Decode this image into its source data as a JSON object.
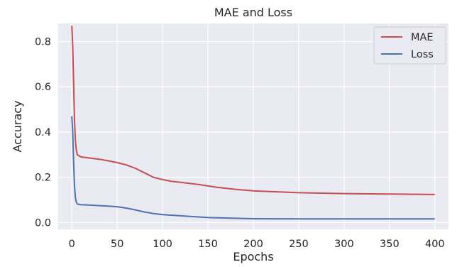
{
  "colors": {
    "plot_background": "#eaeaf2",
    "grid": "#ffffff",
    "mae": "#c44e52",
    "loss": "#4c72b0"
  },
  "chart_data": {
    "type": "line",
    "title": "MAE and Loss",
    "xlabel": "Epochs",
    "ylabel": "Accuracy",
    "xlim": [
      -15,
      415
    ],
    "ylim": [
      -0.03,
      0.88
    ],
    "x_ticks": [
      0,
      50,
      100,
      150,
      200,
      250,
      300,
      350,
      400
    ],
    "x_tick_labels": [
      "0",
      "50",
      "100",
      "150",
      "200",
      "250",
      "300",
      "350",
      "400"
    ],
    "y_ticks": [
      0.0,
      0.2,
      0.4,
      0.6,
      0.8
    ],
    "y_tick_labels": [
      "0.0",
      "0.2",
      "0.4",
      "0.6",
      "0.8"
    ],
    "grid": true,
    "legend_position": "top-right",
    "series": [
      {
        "name": "MAE",
        "color": "#c44e52",
        "x": [
          0,
          1,
          2,
          3,
          4,
          5,
          6,
          8,
          10,
          15,
          20,
          30,
          40,
          50,
          60,
          70,
          80,
          90,
          100,
          110,
          120,
          140,
          160,
          180,
          200,
          250,
          300,
          350,
          400
        ],
        "y": [
          0.87,
          0.78,
          0.62,
          0.45,
          0.36,
          0.32,
          0.3,
          0.295,
          0.29,
          0.288,
          0.285,
          0.28,
          0.273,
          0.265,
          0.255,
          0.24,
          0.22,
          0.2,
          0.19,
          0.182,
          0.178,
          0.168,
          0.156,
          0.147,
          0.14,
          0.132,
          0.128,
          0.126,
          0.124
        ]
      },
      {
        "name": "Loss",
        "color": "#4c72b0",
        "x": [
          0,
          1,
          2,
          3,
          4,
          5,
          6,
          8,
          10,
          20,
          40,
          50,
          60,
          70,
          80,
          90,
          100,
          120,
          150,
          180,
          200,
          250,
          300,
          350,
          400
        ],
        "y": [
          0.47,
          0.4,
          0.27,
          0.16,
          0.11,
          0.09,
          0.082,
          0.08,
          0.079,
          0.077,
          0.073,
          0.07,
          0.064,
          0.056,
          0.047,
          0.04,
          0.035,
          0.03,
          0.022,
          0.019,
          0.017,
          0.016,
          0.016,
          0.016,
          0.016
        ]
      }
    ]
  }
}
